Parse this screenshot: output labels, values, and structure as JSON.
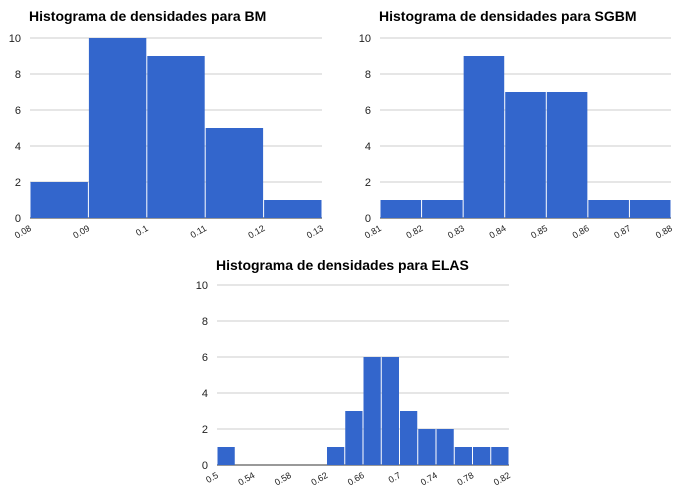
{
  "chart_data": [
    {
      "type": "bar",
      "title": "Histograma de densidades para BM",
      "bin_edges": [
        0.08,
        0.09,
        0.1,
        0.11,
        0.12,
        0.13
      ],
      "counts": [
        2,
        10,
        9,
        5,
        1
      ],
      "x_tick_labels": [
        "0.08",
        "0.09",
        "0.1",
        "0.11",
        "0.12",
        "0.13"
      ],
      "y_tick_labels": [
        "0",
        "2",
        "4",
        "6",
        "8",
        "10"
      ],
      "ylim": [
        0,
        10
      ],
      "grid": true,
      "bar_color": "#3366cc"
    },
    {
      "type": "bar",
      "title": "Histograma de densidades para SGBM",
      "bin_edges": [
        0.81,
        0.82,
        0.83,
        0.84,
        0.85,
        0.86,
        0.87,
        0.88
      ],
      "counts": [
        1,
        1,
        9,
        7,
        7,
        1,
        1
      ],
      "x_tick_labels": [
        "0.81",
        "0.82",
        "0.83",
        "0.84",
        "0.85",
        "0.86",
        "0.87",
        "0.88"
      ],
      "y_tick_labels": [
        "0",
        "2",
        "4",
        "6",
        "8",
        "10"
      ],
      "ylim": [
        0,
        10
      ],
      "grid": true,
      "bar_color": "#3366cc"
    },
    {
      "type": "bar",
      "title": "Histograma de densidades para ELAS",
      "bin_edges": [
        0.5,
        0.52,
        0.54,
        0.56,
        0.58,
        0.6,
        0.62,
        0.64,
        0.66,
        0.68,
        0.7,
        0.72,
        0.74,
        0.76,
        0.78,
        0.8,
        0.82
      ],
      "counts": [
        1,
        0,
        0,
        0,
        0,
        0,
        1,
        3,
        6,
        6,
        3,
        2,
        2,
        1,
        1,
        1
      ],
      "x_tick_labels": [
        "0.5",
        "0.54",
        "0.58",
        "0.62",
        "0.66",
        "0.7",
        "0.74",
        "0.78",
        "0.82"
      ],
      "y_tick_labels": [
        "0",
        "2",
        "4",
        "6",
        "8",
        "10"
      ],
      "ylim": [
        0,
        10
      ],
      "grid": true,
      "bar_color": "#3366cc"
    }
  ]
}
